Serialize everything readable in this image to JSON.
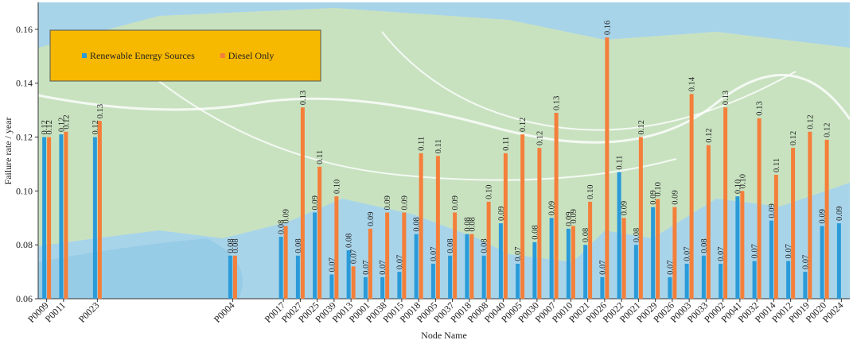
{
  "chart_data": {
    "type": "bar",
    "x_label": "Node Name",
    "y_label": "Failure rate / year",
    "categories": [
      "P0009",
      "P0011",
      null,
      "P0023",
      null,
      null,
      null,
      null,
      null,
      null,
      null,
      "P0004",
      null,
      null,
      "P0017",
      "P0027",
      "P0025",
      "P0039",
      "P0013",
      "P0001",
      "P0038",
      "P0015",
      "P0018",
      "P0005",
      "P0037",
      "P0018",
      "P0008",
      "P0040",
      "P0005",
      "P0030",
      "P0007",
      "P0010",
      "P0021",
      "P0026",
      "P0022",
      "P0021",
      "P0029",
      "P0026",
      "P0003",
      "P0033",
      "P0002",
      "P0041",
      "P0032",
      "P0014",
      "P0012",
      "P0019",
      "P0020",
      "P0024"
    ],
    "series": [
      {
        "name": "Renewable Energy Sources",
        "color": "#2a9bd8",
        "values": [
          0.12,
          0.121,
          null,
          0.12,
          null,
          null,
          null,
          null,
          null,
          null,
          null,
          0.076,
          null,
          null,
          0.083,
          0.076,
          0.092,
          0.069,
          0.078,
          0.068,
          0.068,
          0.07,
          0.084,
          0.073,
          0.076,
          0.084,
          0.076,
          0.088,
          0.073,
          0.081,
          0.09,
          0.086,
          0.08,
          0.068,
          0.107,
          0.08,
          0.094,
          0.068,
          0.073,
          0.076,
          0.073,
          0.098,
          0.074,
          0.089,
          0.074,
          0.07,
          0.087,
          0.088
        ],
        "value_labels": [
          "0.12",
          "0.12",
          null,
          "0.12",
          null,
          null,
          null,
          null,
          null,
          null,
          null,
          "0.08",
          null,
          null,
          "0.08",
          "0.08",
          "0.09",
          "0.07",
          "0.08",
          "0.07",
          "0.07",
          "0.07",
          "0.08",
          "0.07",
          "0.08",
          "0.08",
          "0.08",
          "0.09",
          "0.07",
          "0.08",
          "0.09",
          "0.09",
          "0.08",
          "0.07",
          "0.11",
          "0.08",
          "0.09",
          "0.07",
          "0.07",
          "0.08",
          "0.07",
          "0.10",
          "0.07",
          "0.09",
          "0.07",
          "0.07",
          "0.09",
          "0.09"
        ]
      },
      {
        "name": "Diesel Only",
        "color": "#f47f3a",
        "values": [
          0.12,
          0.122,
          null,
          0.126,
          null,
          null,
          null,
          null,
          null,
          null,
          null,
          0.076,
          null,
          null,
          0.087,
          0.131,
          0.109,
          0.098,
          0.072,
          0.086,
          0.092,
          0.092,
          0.114,
          0.113,
          0.092,
          0.084,
          0.096,
          0.114,
          0.121,
          0.116,
          0.129,
          0.087,
          0.096,
          0.157,
          0.09,
          0.12,
          0.097,
          0.094,
          0.136,
          0.117,
          0.131,
          0.1,
          0.127,
          0.106,
          0.116,
          0.122,
          0.119,
          null
        ],
        "value_labels": [
          "0.12",
          "0.12",
          null,
          "0.13",
          null,
          null,
          null,
          null,
          null,
          null,
          null,
          "0.08",
          null,
          null,
          "0.09",
          "0.13",
          "0.11",
          "0.10",
          "0.07",
          "0.09",
          "0.09",
          "0.09",
          "0.11",
          "0.11",
          "0.09",
          "0.08",
          "0.10",
          "0.11",
          "0.12",
          "0.12",
          "0.13",
          "0.09",
          "0.10",
          "0.16",
          "0.09",
          "0.12",
          "0.10",
          "0.09",
          "0.14",
          "0.12",
          "0.13",
          "0.10",
          "0.13",
          "0.11",
          "0.12",
          "0.12",
          "0.12",
          null
        ]
      }
    ],
    "ylim": [
      0.06,
      0.17
    ],
    "yticks": [
      0.06,
      0.08,
      {
        "value": 0.1,
        "label": "0.10"
      },
      0.12,
      0.14,
      0.16
    ],
    "legend_position": "upper left"
  }
}
